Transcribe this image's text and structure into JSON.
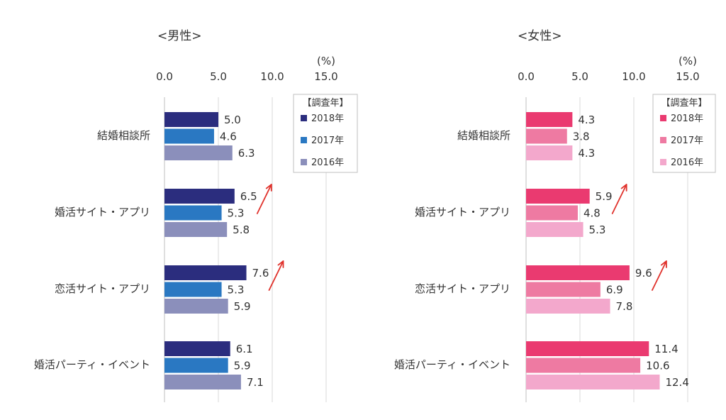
{
  "chart_data": [
    {
      "type": "bar",
      "title": "<男性>",
      "unit": "(%)",
      "xticks": [
        "0.0",
        "5.0",
        "10.0",
        "15.0"
      ],
      "xlim": [
        0,
        15
      ],
      "categories": [
        "結婚相談所",
        "婚活サイト・アプリ",
        "恋活サイト・アプリ",
        "婚活パーティ・イベント"
      ],
      "legend_title": "【調査年】",
      "legend_position": "top-right",
      "series": [
        {
          "name": "2018年",
          "color": "#2b2d7e",
          "values": [
            5.0,
            6.5,
            7.6,
            6.1
          ]
        },
        {
          "name": "2017年",
          "color": "#2a78c2",
          "values": [
            4.6,
            5.3,
            5.3,
            5.9
          ]
        },
        {
          "name": "2016年",
          "color": "#8b8fbb",
          "values": [
            6.3,
            5.8,
            5.9,
            7.1
          ]
        }
      ],
      "trend_arrows": [
        1,
        2
      ]
    },
    {
      "type": "bar",
      "title": "<女性>",
      "unit": "(%)",
      "xticks": [
        "0.0",
        "5.0",
        "10.0",
        "15.0"
      ],
      "xlim": [
        0,
        15
      ],
      "categories": [
        "結婚相談所",
        "婚活サイト・アプリ",
        "恋活サイト・アプリ",
        "婚活パーティ・イベント"
      ],
      "legend_title": "【調査年】",
      "legend_position": "top-right",
      "series": [
        {
          "name": "2018年",
          "color": "#ea3a70",
          "values": [
            4.3,
            5.9,
            9.6,
            11.4
          ]
        },
        {
          "name": "2017年",
          "color": "#ee7aa2",
          "values": [
            3.8,
            4.8,
            6.9,
            10.6
          ]
        },
        {
          "name": "2016年",
          "color": "#f3a8cc",
          "values": [
            4.3,
            5.3,
            7.8,
            12.4
          ]
        }
      ],
      "trend_arrows": [
        1,
        2
      ]
    }
  ]
}
